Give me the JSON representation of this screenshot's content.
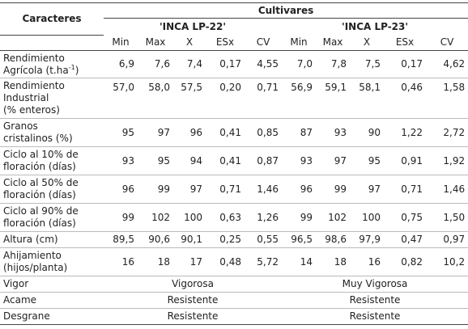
{
  "table": {
    "corner": "Caracteres",
    "group_header": "Cultivares",
    "cultivars": [
      "'INCA LP-22'",
      "'INCA LP-23'"
    ],
    "stat_headers": [
      "Min",
      "Max",
      "X",
      "ESx",
      "CV",
      "Min",
      "Max",
      "X",
      "ESx",
      "CV"
    ],
    "rows": [
      {
        "label_a": "Rendimiento",
        "label_b": "Agrícola (t.ha",
        "label_sup": "-1",
        "label_c": ")",
        "values": [
          "6,9",
          "7,6",
          "7,4",
          "0,17",
          "4,55",
          "7,0",
          "7,8",
          "7,5",
          "0,17",
          "4,62"
        ]
      },
      {
        "label_a": "Rendimiento",
        "label_b": "Industrial",
        "label_c": "(% enteros)",
        "values": [
          "57,0",
          "58,0",
          "57,5",
          "0,20",
          "0,71",
          "56,9",
          "59,1",
          "58,1",
          "0,46",
          "1,58"
        ]
      },
      {
        "label_a": "Granos",
        "label_b": "cristalinos (%)",
        "values": [
          "95",
          "97",
          "96",
          "0,41",
          "0,85",
          "87",
          "93",
          "90",
          "1,22",
          "2,72"
        ]
      },
      {
        "label_a": "Ciclo al 10% de",
        "label_b": "floración (días)",
        "values": [
          "93",
          "95",
          "94",
          "0,41",
          "0,87",
          "93",
          "97",
          "95",
          "0,91",
          "1,92"
        ]
      },
      {
        "label_a": "Ciclo al 50% de",
        "label_b": "floración (días)",
        "values": [
          "96",
          "99",
          "97",
          "0,71",
          "1,46",
          "96",
          "99",
          "97",
          "0,71",
          "1,46"
        ]
      },
      {
        "label_a": "Ciclo al 90% de",
        "label_b": "floración (días)",
        "values": [
          "99",
          "102",
          "100",
          "0,63",
          "1,26",
          "99",
          "102",
          "100",
          "0,75",
          "1,50"
        ]
      },
      {
        "label_a": "Altura (cm)",
        "values": [
          "89,5",
          "90,6",
          "90,1",
          "0,25",
          "0,55",
          "96,5",
          "98,6",
          "97,9",
          "0,47",
          "0,97"
        ]
      },
      {
        "label_a": "Ahijamiento",
        "label_b": "(hijos/planta)",
        "values": [
          "16",
          "18",
          "17",
          "0,48",
          "5,72",
          "14",
          "18",
          "16",
          "0,82",
          "10,2"
        ]
      }
    ],
    "qual_rows": [
      {
        "label": "Vigor",
        "lp22": "Vigorosa",
        "lp23": "Muy Vigorosa"
      },
      {
        "label": "Acame",
        "lp22": "Resistente",
        "lp23": "Resistente"
      },
      {
        "label": "Desgrane",
        "lp22": "Resistente",
        "lp23": "Resistente"
      }
    ]
  }
}
